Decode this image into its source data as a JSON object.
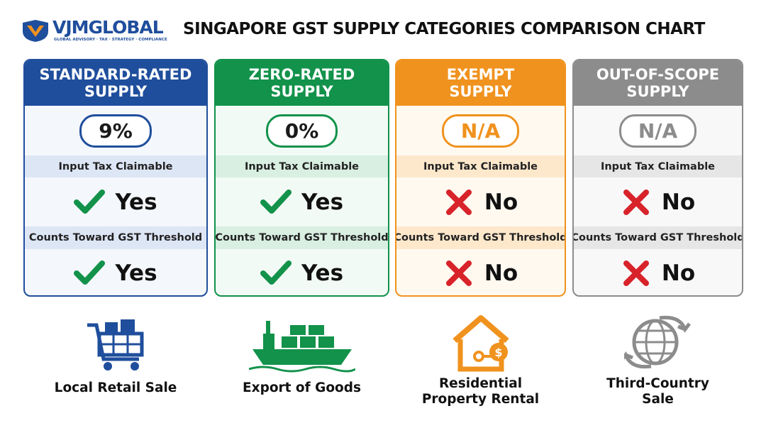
{
  "logo": {
    "name": "VJMGLOBAL",
    "tagline": "GLOBAL ADVISORY · TAX · STRATEGY · COMPLIANCE"
  },
  "title": "SINGAPORE GST SUPPLY CATEGORIES COMPARISON CHART",
  "columns": [
    {
      "header": [
        "STANDARD-RATED",
        "SUPPLY"
      ],
      "rate": "9%",
      "input_tax_label": "Input Tax Claimable",
      "input_tax": "Yes",
      "threshold_label": "Counts Toward GST Threshold",
      "threshold": "Yes",
      "example": [
        "Local Retail Sale"
      ],
      "color": "#1f4e9c",
      "tint": "#dde6f5",
      "body": "#f4f7fc"
    },
    {
      "header": [
        "ZERO-RATED",
        "SUPPLY"
      ],
      "rate": "0%",
      "input_tax_label": "Input Tax Claimable",
      "input_tax": "Yes",
      "threshold_label": "Counts Toward GST Threshold",
      "threshold": "Yes",
      "example": [
        "Export of Goods"
      ],
      "color": "#12924a",
      "tint": "#d8efe1",
      "body": "#f2faf5"
    },
    {
      "header": [
        "EXEMPT",
        "SUPPLY"
      ],
      "rate": "N/A",
      "input_tax_label": "Input Tax Claimable",
      "input_tax": "No",
      "threshold_label": "Counts Toward GST Threshold",
      "threshold": "No",
      "example": [
        "Residential",
        "Property Rental"
      ],
      "color": "#f0921e",
      "tint": "#fde8cc",
      "body": "#fff9f0"
    },
    {
      "header": [
        "OUT-OF-SCOPE",
        "SUPPLY"
      ],
      "rate": "N/A",
      "input_tax_label": "Input Tax Claimable",
      "input_tax": "No",
      "threshold_label": "Counts Toward GST Threshold",
      "threshold": "No",
      "example": [
        "Third-Country",
        "Sale"
      ],
      "color": "#8c8c8c",
      "tint": "#e6e6e6",
      "body": "#f8f8f8"
    }
  ]
}
